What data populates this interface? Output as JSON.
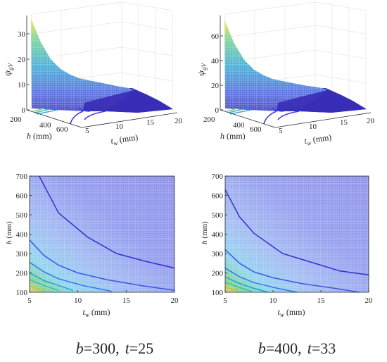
{
  "chart_data": [
    {
      "type": "surface",
      "panel": "top-left",
      "zlabel_sym": "ψ",
      "zlabel_sub": "gV",
      "zticks": [
        "0",
        "10",
        "20",
        "30"
      ],
      "zlim": [
        0,
        38
      ],
      "xlabel_sym": "t",
      "xlabel_sub": "w",
      "xlabel_unit": " (mm)",
      "xticks": [
        "5",
        "10",
        "15",
        "20"
      ],
      "xlim": [
        5,
        20
      ],
      "ylabel_sym": "h",
      "ylabel_unit": " (mm)",
      "yticks": [
        "200",
        "400",
        "600"
      ],
      "ylim": [
        100,
        700
      ],
      "tw": [
        5,
        8,
        11,
        14,
        17,
        20
      ],
      "h": [
        100,
        200,
        300,
        400,
        500,
        600,
        700
      ],
      "z": [
        [
          38.0,
          16.0,
          9.0,
          5.5,
          3.5,
          2.2
        ],
        [
          26.0,
          12.0,
          7.0,
          4.5,
          3.0,
          2.0
        ],
        [
          21.0,
          10.0,
          6.0,
          3.9,
          2.6,
          1.8
        ],
        [
          19.0,
          8.8,
          5.3,
          3.5,
          2.3,
          1.6
        ],
        [
          17.5,
          8.0,
          4.9,
          3.2,
          2.1,
          1.5
        ],
        [
          16.5,
          7.5,
          4.6,
          3.0,
          2.0,
          1.4
        ],
        [
          15.5,
          7.0,
          4.3,
          2.8,
          1.9,
          1.3
        ]
      ]
    },
    {
      "type": "surface",
      "panel": "top-right",
      "zlabel_sym": "ψ",
      "zlabel_sub": "gV",
      "zticks": [
        "0",
        "20",
        "40",
        "60"
      ],
      "zlim": [
        0,
        72
      ],
      "xlabel_sym": "t",
      "xlabel_sub": "w",
      "xlabel_unit": " (mm)",
      "xticks": [
        "5",
        "10",
        "15",
        "20"
      ],
      "xlim": [
        5,
        20
      ],
      "ylabel_sym": "h",
      "ylabel_unit": " (mm)",
      "yticks": [
        "200",
        "400",
        "600"
      ],
      "ylim": [
        100,
        700
      ],
      "tw": [
        5,
        8,
        11,
        14,
        17,
        20
      ],
      "h": [
        100,
        200,
        300,
        400,
        500,
        600,
        700
      ],
      "z": [
        [
          72.0,
          30.0,
          17.0,
          10.5,
          6.7,
          4.2
        ],
        [
          50.0,
          23.0,
          13.5,
          8.6,
          5.7,
          3.8
        ],
        [
          40.0,
          19.0,
          11.5,
          7.4,
          5.0,
          3.4
        ],
        [
          36.0,
          16.8,
          10.2,
          6.7,
          4.4,
          3.1
        ],
        [
          33.0,
          15.3,
          9.4,
          6.1,
          4.0,
          2.8
        ],
        [
          31.0,
          14.3,
          8.8,
          5.7,
          3.8,
          2.7
        ],
        [
          29.5,
          13.4,
          8.2,
          5.3,
          3.6,
          2.5
        ]
      ]
    },
    {
      "type": "contour",
      "panel": "bottom-left",
      "xlabel_sym": "t",
      "xlabel_sub": "w",
      "xlabel_unit": " (mm)",
      "ylabel_sym": "h",
      "ylabel_unit": " (mm)",
      "xticks": [
        "5",
        "10",
        "15",
        "20"
      ],
      "xlim": [
        5,
        20
      ],
      "yticks": [
        "100",
        "200",
        "300",
        "400",
        "500",
        "600",
        "700"
      ],
      "ylim": [
        100,
        700
      ],
      "contours": [
        {
          "color": "#3a2bd0",
          "x": [
            6.0,
            8.0,
            11.0,
            14.0,
            17.0,
            20.0
          ],
          "y": [
            700,
            510,
            385,
            300,
            260,
            225
          ]
        },
        {
          "color": "#3f53e6",
          "x": [
            5.0,
            6.5,
            8.0,
            10.0,
            13.0,
            16.5,
            20.0
          ],
          "y": [
            370,
            290,
            240,
            200,
            165,
            135,
            110
          ]
        },
        {
          "color": "#2f78f0",
          "x": [
            5.0,
            6.5,
            8.0,
            10.5,
            13.5
          ],
          "y": [
            255,
            205,
            170,
            135,
            105
          ]
        },
        {
          "color": "#14a9d8",
          "x": [
            5.0,
            6.5,
            8.0,
            9.5
          ],
          "y": [
            200,
            160,
            135,
            110
          ]
        },
        {
          "color": "#2fc49e",
          "x": [
            5.0,
            6.5,
            8.0
          ],
          "y": [
            165,
            135,
            110
          ]
        },
        {
          "color": "#b8ca3c",
          "x": [
            5.0,
            5.8,
            6.5
          ],
          "y": [
            135,
            118,
            103
          ]
        }
      ]
    },
    {
      "type": "contour",
      "panel": "bottom-right",
      "xlabel_sym": "t",
      "xlabel_sub": "w",
      "xlabel_unit": " (mm)",
      "ylabel_sym": "h",
      "ylabel_unit": " (mm)",
      "xticks": [
        "5",
        "10",
        "15",
        "20"
      ],
      "xlim": [
        5,
        20
      ],
      "yticks": [
        "100",
        "200",
        "300",
        "400",
        "500",
        "600",
        "700"
      ],
      "ylim": [
        100,
        700
      ],
      "contours": [
        {
          "color": "#3a2bd0",
          "x": [
            5.0,
            6.5,
            8.0,
            11.0,
            14.0,
            17.0,
            20.0
          ],
          "y": [
            630,
            490,
            405,
            300,
            255,
            210,
            190
          ]
        },
        {
          "color": "#3f53e6",
          "x": [
            5.0,
            6.5,
            8.0,
            10.0,
            13.0,
            16.5,
            19.0
          ],
          "y": [
            320,
            250,
            205,
            175,
            145,
            120,
            100
          ]
        },
        {
          "color": "#2f78f0",
          "x": [
            5.0,
            6.5,
            8.0,
            10.5,
            12.5
          ],
          "y": [
            225,
            180,
            150,
            120,
            100
          ]
        },
        {
          "color": "#14a9d8",
          "x": [
            5.0,
            6.5,
            8.0,
            9.5
          ],
          "y": [
            180,
            145,
            120,
            100
          ]
        },
        {
          "color": "#2fc49e",
          "x": [
            5.0,
            6.5,
            7.8
          ],
          "y": [
            150,
            125,
            103
          ]
        },
        {
          "color": "#b8ca3c",
          "x": [
            5.0,
            5.8,
            6.4
          ],
          "y": [
            128,
            113,
            101
          ]
        }
      ]
    }
  ],
  "captions": [
    {
      "b_sym": "b",
      "b_val": "=300,",
      "t_sym": "t",
      "t_val": "=25"
    },
    {
      "b_sym": "b",
      "b_val": "=400,",
      "t_sym": "t",
      "t_val": "=33"
    }
  ]
}
